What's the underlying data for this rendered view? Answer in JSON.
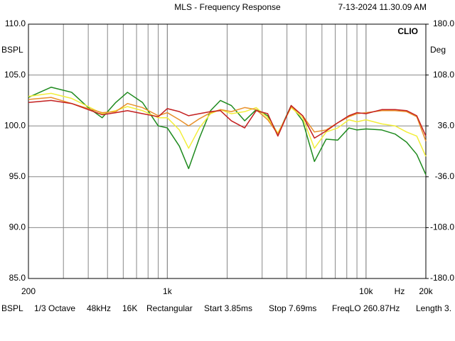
{
  "chart_data": {
    "type": "line",
    "title": "MLS - Frequency Response",
    "timestamp": "7-13-2024 11.30.09 AM",
    "brand": "CLIO",
    "y_label": "BSPL",
    "y2_label": "Deg",
    "x_unit": "Hz",
    "x_log": true,
    "grid": true,
    "xlim": [
      200,
      20000
    ],
    "xticks": [
      200,
      {
        "value": 1000,
        "label": "1k"
      },
      {
        "value": 10000,
        "label": "10k"
      },
      {
        "value": 20000,
        "label": "20k"
      }
    ],
    "ylim": [
      85,
      110
    ],
    "yticks": [
      {
        "value": 85,
        "label": "85.0"
      },
      {
        "value": 90,
        "label": "90.0"
      },
      {
        "value": 95,
        "label": "95.0"
      },
      {
        "value": 100,
        "label": "100.0"
      },
      {
        "value": 105,
        "label": "105.0"
      },
      {
        "value": 110,
        "label": "110.0"
      }
    ],
    "y2lim": [
      -180,
      180
    ],
    "y2ticks": [
      {
        "value": -180,
        "label": "-180.0"
      },
      {
        "value": -108,
        "label": "-108.0"
      },
      {
        "value": -36,
        "label": "-36.0"
      },
      {
        "value": 36,
        "label": "36.0"
      },
      {
        "value": 108,
        "label": "108.0"
      },
      {
        "value": 180,
        "label": "180.0"
      }
    ],
    "x": [
      200,
      260,
      330,
      400,
      470,
      550,
      630,
      750,
      900,
      1000,
      1150,
      1280,
      1450,
      1650,
      1850,
      2100,
      2450,
      2800,
      3200,
      3600,
      4200,
      4800,
      5500,
      6300,
      7200,
      8200,
      9000,
      10000,
      12000,
      14000,
      16000,
      18000,
      20000
    ],
    "series": [
      {
        "color": "#1e8a1e",
        "values": [
          102.8,
          103.8,
          103.3,
          101.8,
          100.8,
          102.3,
          103.3,
          102.3,
          100.0,
          99.8,
          98.0,
          95.8,
          98.8,
          101.5,
          102.5,
          102.0,
          100.5,
          101.6,
          101.0,
          99.2,
          102.0,
          100.5,
          96.5,
          98.7,
          98.6,
          99.8,
          99.6,
          99.7,
          99.6,
          99.2,
          98.4,
          97.2,
          95.2
        ]
      },
      {
        "color": "#f2ee3a",
        "values": [
          102.9,
          103.2,
          102.7,
          101.9,
          101.2,
          101.5,
          101.9,
          101.5,
          100.8,
          100.8,
          99.6,
          97.8,
          99.8,
          101.2,
          101.6,
          101.2,
          101.4,
          101.8,
          100.8,
          99.3,
          101.8,
          100.8,
          97.8,
          99.4,
          99.8,
          100.6,
          100.4,
          100.6,
          100.2,
          100.0,
          99.4,
          99.0,
          97.0
        ]
      },
      {
        "color": "#e8902a",
        "values": [
          102.6,
          102.8,
          102.2,
          101.7,
          101.3,
          101.4,
          102.2,
          101.8,
          101.0,
          101.3,
          100.6,
          100.0,
          100.7,
          101.3,
          101.6,
          101.4,
          101.8,
          101.6,
          100.6,
          99.2,
          101.9,
          101.0,
          99.4,
          99.6,
          100.3,
          100.9,
          101.2,
          101.3,
          101.5,
          101.5,
          101.4,
          100.9,
          98.5
        ]
      },
      {
        "color": "#c42020",
        "values": [
          102.3,
          102.5,
          102.2,
          101.6,
          101.1,
          101.3,
          101.5,
          101.2,
          100.9,
          101.7,
          101.4,
          101.0,
          101.2,
          101.4,
          101.5,
          100.5,
          99.8,
          101.5,
          101.2,
          99.0,
          102.0,
          101.0,
          98.8,
          99.5,
          100.3,
          101.0,
          101.3,
          101.2,
          101.6,
          101.6,
          101.5,
          101.0,
          99.0
        ]
      }
    ],
    "status": [
      "BSPL",
      "1/3 Octave",
      "48kHz",
      "16K",
      "Rectangular",
      "Start 3.85ms",
      "Stop 7.69ms",
      "FreqLO 260.87Hz",
      "Length 3."
    ]
  }
}
